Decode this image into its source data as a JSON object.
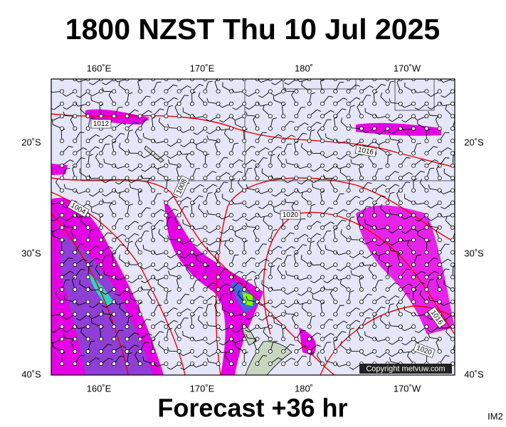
{
  "title": "1800 NZST Thu 10 Jul 2025",
  "footer": "Forecast +36 hr",
  "image_code": "IM2",
  "copyright": "Copyright metvuw.com",
  "map": {
    "lon_labels": [
      "160˚E",
      "170˚E",
      "180˚",
      "170˚W"
    ],
    "lat_labels": [
      "20˚S",
      "30˚S",
      "40˚S"
    ],
    "isobar_labels": [
      "1012",
      "1016",
      "1008",
      "1004",
      "1020",
      "1016",
      "1020"
    ]
  }
}
